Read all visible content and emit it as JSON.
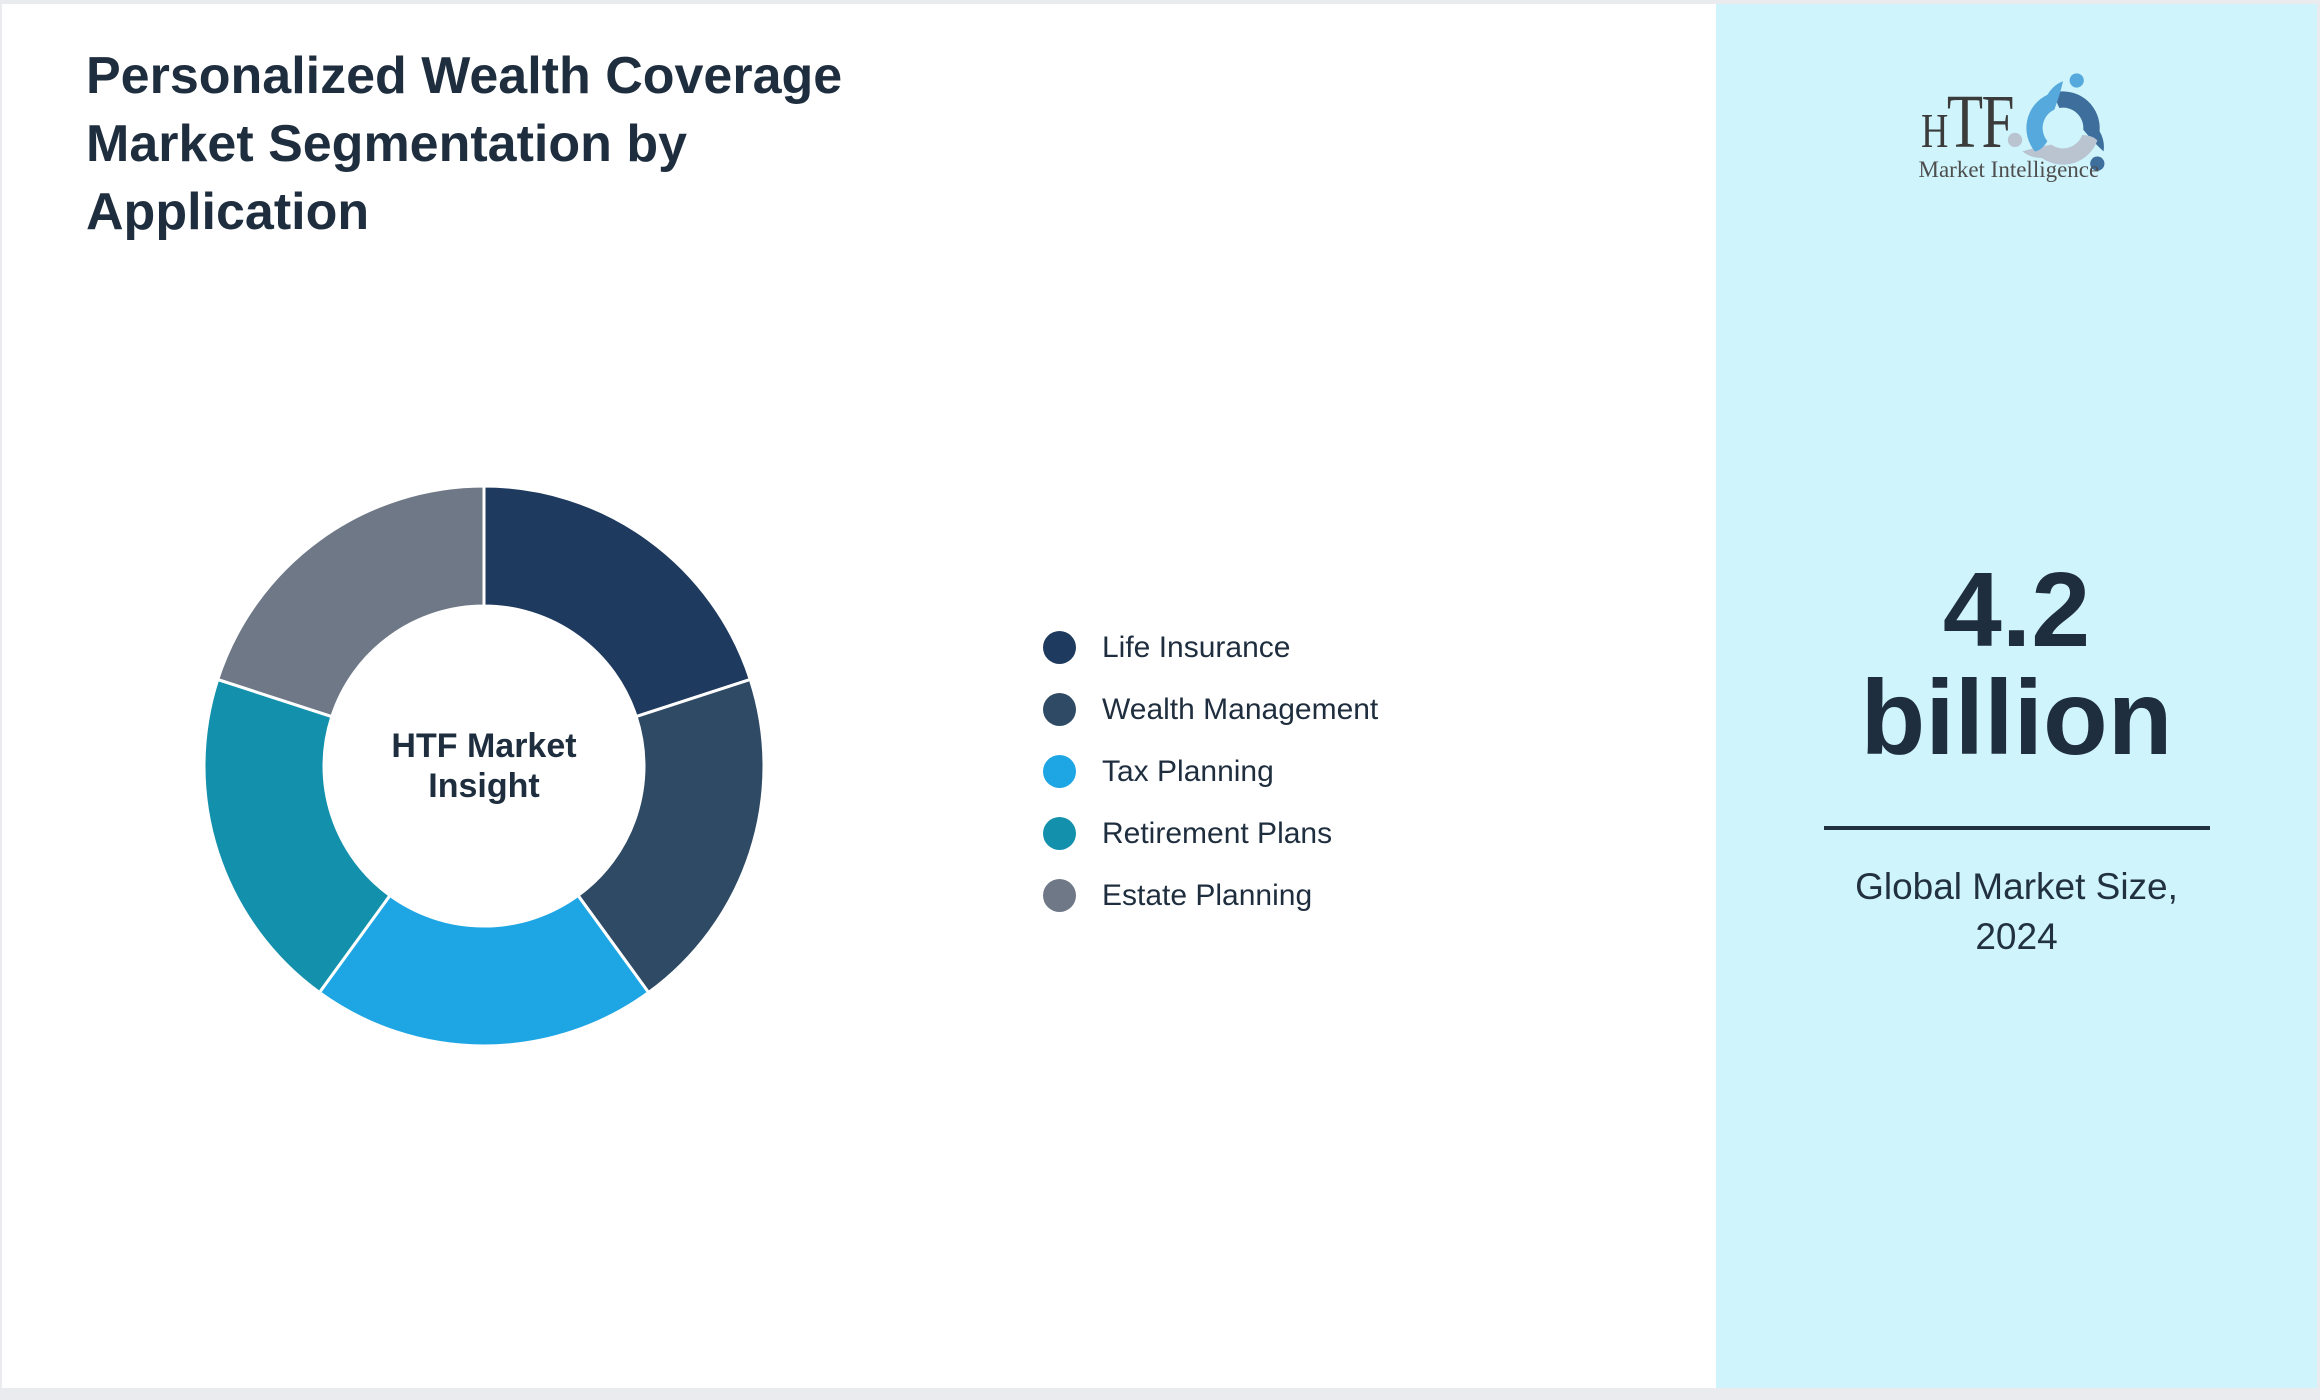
{
  "page": {
    "title_lines": [
      "Personalized Wealth Coverage",
      "Market Segmentation by",
      "Application"
    ]
  },
  "chart_data": {
    "type": "pie",
    "subtype": "donut",
    "title": "Personalized Wealth Coverage Market Segmentation by Application",
    "labels": [
      "Life Insurance",
      "Wealth Management",
      "Tax Planning",
      "Retirement Plans",
      "Estate Planning"
    ],
    "values": [
      20,
      20,
      20,
      20,
      20
    ],
    "values_note": "no numeric labels shown; five equal 72-degree slices, approx 20% each",
    "colors": [
      "#1F3A5F",
      "#2E4A64",
      "#1EA6E4",
      "#1391AC",
      "#6E7886"
    ],
    "center_label_lines": [
      "HTF Market",
      "Insight"
    ],
    "legend_position": "right",
    "start_angle_deg": 0,
    "direction": "clockwise",
    "slice_gap_color": "#FFFFFF"
  },
  "sidebar": {
    "background": "#CFF4FB",
    "logo_text": "HTF",
    "logo_subtext": "Market Intelligence",
    "logo_icon": "three-swirling-figures-icon",
    "logo_icon_colors": [
      "#3E6F9C",
      "#B9C4D0",
      "#55A9DC"
    ],
    "value_lines": [
      "4.2",
      "billion"
    ],
    "caption_lines": [
      "Global Market Size,",
      "2024"
    ]
  },
  "colors": {
    "text_dark": "#1F2E3E",
    "divider": "#22313F",
    "card_background": "#FFFFFF",
    "page_border": "#E9EBEE"
  }
}
